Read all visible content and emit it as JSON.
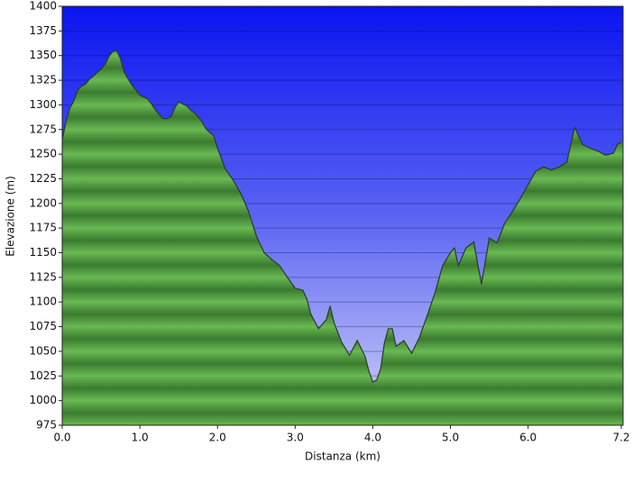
{
  "chart_data": {
    "type": "area",
    "x_label": "Distanza  (km)",
    "y_label": "Elevazione (m)",
    "color": "#5fae4a",
    "line_color": "#2b3a28",
    "grid": true,
    "xlim": [
      0,
      7.2
    ],
    "xticks": [
      {
        "value": 0,
        "label": "0.0"
      },
      {
        "value": 1,
        "label": "1.0"
      },
      {
        "value": 2,
        "label": "2.0"
      },
      {
        "value": 3,
        "label": "3.0"
      },
      {
        "value": 4,
        "label": "4.0"
      },
      {
        "value": 5,
        "label": "5.0"
      },
      {
        "value": 6,
        "label": "6.0"
      },
      7.2
    ],
    "ylim": [
      975,
      1400
    ],
    "yticks": [
      975,
      1000,
      1025,
      1050,
      1075,
      1100,
      1125,
      1150,
      1175,
      1200,
      1225,
      1250,
      1275,
      1300,
      1325,
      1350,
      1375,
      1400
    ],
    "x": [
      0,
      0.05,
      0.1,
      0.15,
      0.2,
      0.25,
      0.3,
      0.35,
      0.4,
      0.45,
      0.5,
      0.55,
      0.6,
      0.65,
      0.7,
      0.75,
      0.8,
      0.85,
      0.9,
      0.95,
      1.0,
      1.05,
      1.1,
      1.15,
      1.2,
      1.25,
      1.3,
      1.35,
      1.4,
      1.45,
      1.5,
      1.55,
      1.6,
      1.65,
      1.7,
      1.75,
      1.8,
      1.85,
      1.9,
      1.95,
      2.0,
      2.1,
      2.2,
      2.3,
      2.4,
      2.5,
      2.6,
      2.7,
      2.8,
      2.9,
      3.0,
      3.1,
      3.15,
      3.2,
      3.3,
      3.4,
      3.45,
      3.5,
      3.6,
      3.7,
      3.8,
      3.9,
      3.95,
      4.0,
      4.05,
      4.1,
      4.15,
      4.2,
      4.25,
      4.3,
      4.4,
      4.5,
      4.6,
      4.7,
      4.8,
      4.9,
      5.0,
      5.05,
      5.1,
      5.2,
      5.3,
      5.35,
      5.4,
      5.5,
      5.6,
      5.7,
      5.8,
      5.9,
      6.0,
      6.1,
      6.2,
      6.3,
      6.4,
      6.5,
      6.55,
      6.6,
      6.7,
      6.8,
      6.9,
      7.0,
      7.1,
      7.15,
      7.2
    ],
    "values": [
      1265,
      1283,
      1297,
      1304,
      1315,
      1319,
      1321,
      1326,
      1329,
      1333,
      1336,
      1341,
      1349,
      1354,
      1355,
      1347,
      1333,
      1326,
      1320,
      1315,
      1310,
      1308,
      1306,
      1301,
      1295,
      1290,
      1286,
      1286,
      1288,
      1297,
      1303,
      1301,
      1299,
      1295,
      1292,
      1288,
      1283,
      1276,
      1272,
      1269,
      1256,
      1235,
      1224,
      1210,
      1192,
      1167,
      1150,
      1143,
      1137,
      1125,
      1114,
      1112,
      1103,
      1088,
      1073,
      1082,
      1096,
      1079,
      1059,
      1046,
      1061,
      1045,
      1030,
      1019,
      1021,
      1032,
      1059,
      1073,
      1073,
      1055,
      1061,
      1048,
      1064,
      1086,
      1109,
      1137,
      1150,
      1155,
      1137,
      1155,
      1161,
      1139,
      1118,
      1165,
      1160,
      1180,
      1192,
      1205,
      1219,
      1233,
      1237,
      1234,
      1237,
      1242,
      1260,
      1277,
      1260,
      1256,
      1253,
      1249,
      1251,
      1260,
      1262
    ]
  }
}
